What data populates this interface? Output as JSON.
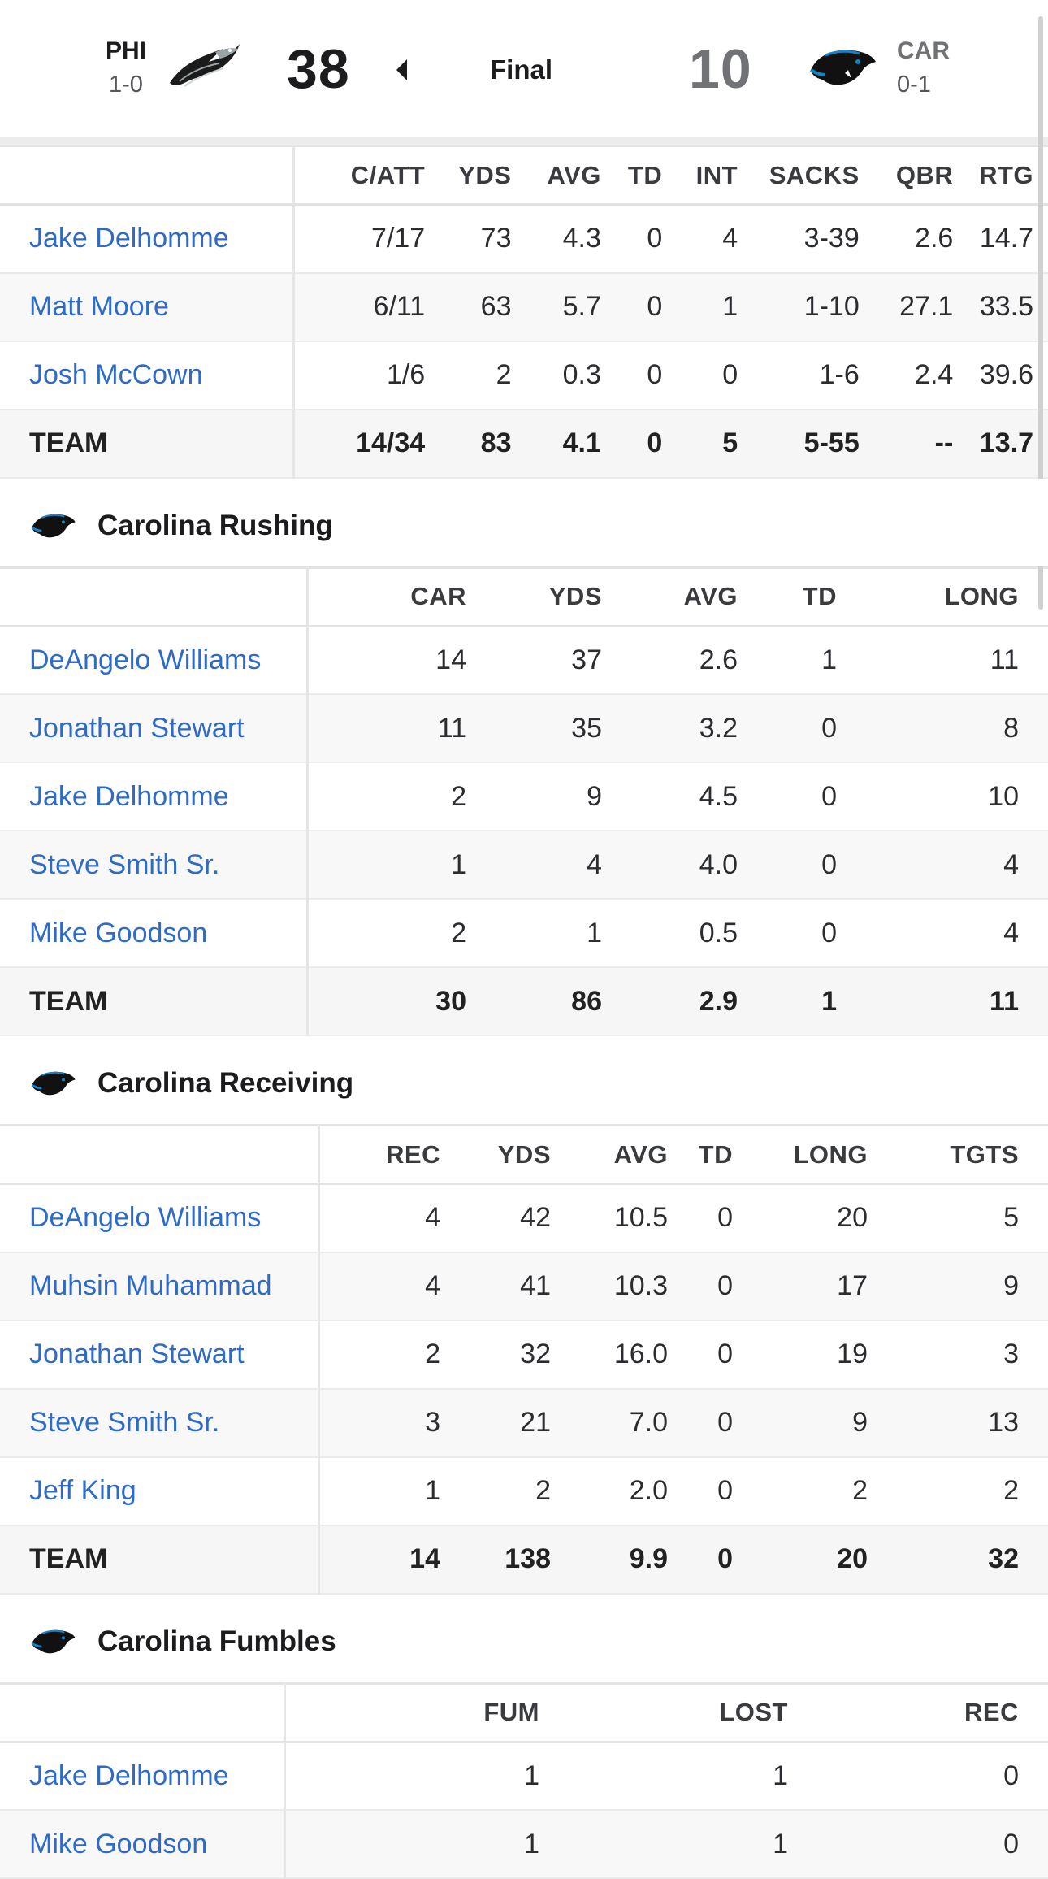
{
  "scoreboard": {
    "home": {
      "abbr": "PHI",
      "record": "1-0",
      "score": "38",
      "logo": "eagles-logo-icon",
      "color": "#1c1c1e"
    },
    "away": {
      "abbr": "CAR",
      "record": "0-1",
      "score": "10",
      "logo": "panthers-logo-icon",
      "color": "#707276"
    },
    "status": "Final"
  },
  "passing": {
    "columns": [
      "C/ATT",
      "YDS",
      "AVG",
      "TD",
      "INT",
      "SACKS",
      "QBR",
      "RTG"
    ],
    "rows": [
      {
        "name": "Jake Delhomme",
        "stats": [
          "7/17",
          "73",
          "4.3",
          "0",
          "4",
          "3-39",
          "2.6",
          "14.7"
        ]
      },
      {
        "name": "Matt Moore",
        "stats": [
          "6/11",
          "63",
          "5.7",
          "0",
          "1",
          "1-10",
          "27.1",
          "33.5"
        ]
      },
      {
        "name": "Josh McCown",
        "stats": [
          "1/6",
          "2",
          "0.3",
          "0",
          "0",
          "1-6",
          "2.4",
          "39.6"
        ]
      }
    ],
    "team": {
      "name": "TEAM",
      "stats": [
        "14/34",
        "83",
        "4.1",
        "0",
        "5",
        "5-55",
        "--",
        "13.7"
      ]
    }
  },
  "rushing": {
    "title": "Carolina Rushing",
    "columns": [
      "CAR",
      "YDS",
      "AVG",
      "TD",
      "LONG"
    ],
    "rows": [
      {
        "name": "DeAngelo Williams",
        "stats": [
          "14",
          "37",
          "2.6",
          "1",
          "11"
        ]
      },
      {
        "name": "Jonathan Stewart",
        "stats": [
          "11",
          "35",
          "3.2",
          "0",
          "8"
        ]
      },
      {
        "name": "Jake Delhomme",
        "stats": [
          "2",
          "9",
          "4.5",
          "0",
          "10"
        ]
      },
      {
        "name": "Steve Smith Sr.",
        "stats": [
          "1",
          "4",
          "4.0",
          "0",
          "4"
        ]
      },
      {
        "name": "Mike Goodson",
        "stats": [
          "2",
          "1",
          "0.5",
          "0",
          "4"
        ]
      }
    ],
    "team": {
      "name": "TEAM",
      "stats": [
        "30",
        "86",
        "2.9",
        "1",
        "11"
      ]
    }
  },
  "receiving": {
    "title": "Carolina Receiving",
    "columns": [
      "REC",
      "YDS",
      "AVG",
      "TD",
      "LONG",
      "TGTS"
    ],
    "rows": [
      {
        "name": "DeAngelo Williams",
        "stats": [
          "4",
          "42",
          "10.5",
          "0",
          "20",
          "5"
        ]
      },
      {
        "name": "Muhsin Muhammad",
        "stats": [
          "4",
          "41",
          "10.3",
          "0",
          "17",
          "9"
        ]
      },
      {
        "name": "Jonathan Stewart",
        "stats": [
          "2",
          "32",
          "16.0",
          "0",
          "19",
          "3"
        ]
      },
      {
        "name": "Steve Smith Sr.",
        "stats": [
          "3",
          "21",
          "7.0",
          "0",
          "9",
          "13"
        ]
      },
      {
        "name": "Jeff King",
        "stats": [
          "1",
          "2",
          "2.0",
          "0",
          "2",
          "2"
        ]
      }
    ],
    "team": {
      "name": "TEAM",
      "stats": [
        "14",
        "138",
        "9.9",
        "0",
        "20",
        "32"
      ]
    }
  },
  "fumbles": {
    "title": "Carolina Fumbles",
    "columns": [
      "FUM",
      "LOST",
      "REC"
    ],
    "rows": [
      {
        "name": "Jake Delhomme",
        "stats": [
          "1",
          "1",
          "0"
        ]
      },
      {
        "name": "Mike Goodson",
        "stats": [
          "1",
          "1",
          "0"
        ]
      }
    ]
  }
}
